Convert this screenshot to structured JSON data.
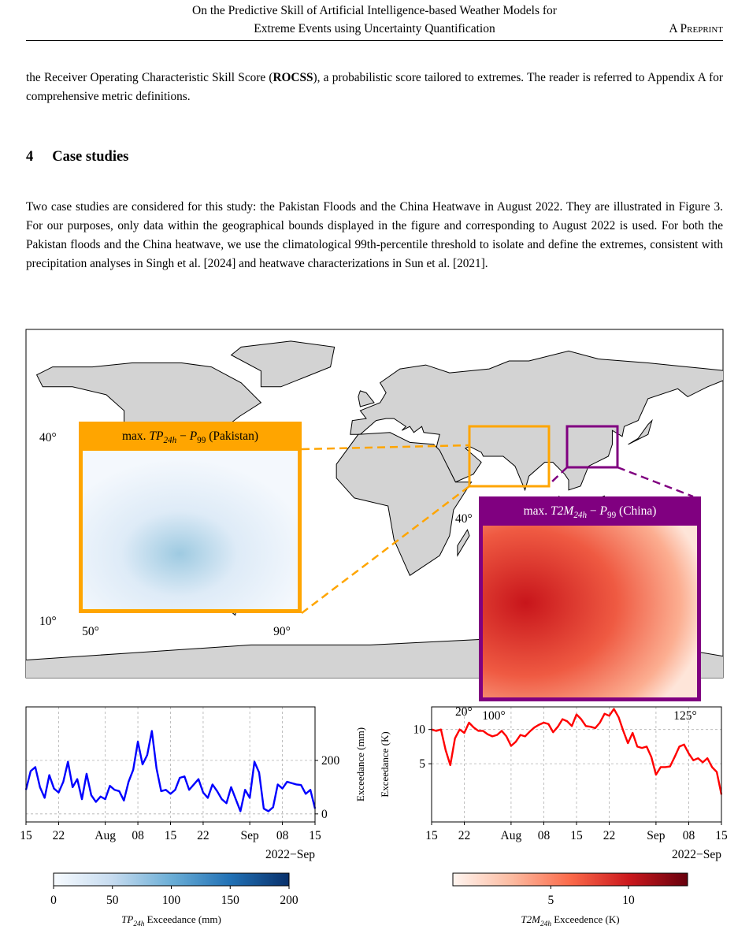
{
  "header": {
    "title_lines": [
      "On the Predictive Skill of Artificial Intelligence-based Weather Models for",
      "Extreme Events using Uncertainty Quantification"
    ],
    "running_label": "A Preprint"
  },
  "body": {
    "paragraph_1": [
      "the Receiver Operating Characteristic Skill Score (",
      "ROCSS",
      "), a probabilistic score tailored to extremes. The reader is referred to Appendix A for comprehensive metric definitions."
    ],
    "section": {
      "number": "4",
      "title": "Case studies"
    },
    "paragraph_2": "Two case studies are considered for this study: the Pakistan Floods and the China Heatwave in August 2022. They are illustrated in Figure 3. For our purposes, only data within the geographical bounds displayed in the figure and corresponding to August 2022 is used. For both the Pakistan floods and the China heatwave, we use the climatological 99th-percentile threshold to isolate and define the extremes, consistent with precipitation analyses in Singh et al. [2024] and heatwave characterizations in Sun et al. [2021]."
  },
  "figure": {
    "insets": [
      {
        "label": [
          {
            "text": "max. "
          },
          {
            "text": "TP",
            "italic": true
          },
          {
            "text": "24h",
            "italic": true,
            "sub": true
          },
          {
            "text": " − "
          },
          {
            "text": "P",
            "italic": true
          },
          {
            "text": "99",
            "sub": true
          },
          {
            "text": " (Pakistan)"
          }
        ],
        "color": "#ffa500",
        "lat_labels": [
          "40°",
          "10°"
        ],
        "lon_labels": [
          "50°",
          "90°"
        ]
      },
      {
        "label": [
          {
            "text": "max. "
          },
          {
            "text": "T2M",
            "italic": true
          },
          {
            "text": "24h",
            "italic": true,
            "sub": true
          },
          {
            "text": " − "
          },
          {
            "text": "P",
            "italic": true
          },
          {
            "text": "99",
            "sub": true
          },
          {
            "text": " (China)"
          }
        ],
        "color": "#800080",
        "lat_labels": [
          "40°",
          "20°"
        ],
        "lon_labels": [
          "100°",
          "125°"
        ]
      }
    ],
    "line_charts": {
      "type": "line",
      "x": [
        "2022-07-15",
        "2022-07-16",
        "2022-07-17",
        "2022-07-18",
        "2022-07-19",
        "2022-07-20",
        "2022-07-21",
        "2022-07-22",
        "2022-07-23",
        "2022-07-24",
        "2022-07-25",
        "2022-07-26",
        "2022-07-27",
        "2022-07-28",
        "2022-07-29",
        "2022-07-30",
        "2022-07-31",
        "2022-08-01",
        "2022-08-02",
        "2022-08-03",
        "2022-08-04",
        "2022-08-05",
        "2022-08-06",
        "2022-08-07",
        "2022-08-08",
        "2022-08-09",
        "2022-08-10",
        "2022-08-11",
        "2022-08-12",
        "2022-08-13",
        "2022-08-14",
        "2022-08-15",
        "2022-08-16",
        "2022-08-17",
        "2022-08-18",
        "2022-08-19",
        "2022-08-20",
        "2022-08-21",
        "2022-08-22",
        "2022-08-23",
        "2022-08-24",
        "2022-08-25",
        "2022-08-26",
        "2022-08-27",
        "2022-08-28",
        "2022-08-29",
        "2022-08-30",
        "2022-08-31",
        "2022-09-01",
        "2022-09-02",
        "2022-09-03",
        "2022-09-04",
        "2022-09-05",
        "2022-09-06",
        "2022-09-07",
        "2022-09-08",
        "2022-09-09",
        "2022-09-10",
        "2022-09-11",
        "2022-09-12",
        "2022-09-13",
        "2022-09-14",
        "2022-09-15"
      ],
      "xlim": [
        "2022-07-15",
        "2022-09-15"
      ],
      "xticks": [
        {
          "value": "2022-07-15",
          "label": "15"
        },
        {
          "value": "2022-07-22",
          "label": "22"
        },
        {
          "value": "2022-08-01",
          "label": "Aug"
        },
        {
          "value": "2022-08-08",
          "label": "08"
        },
        {
          "value": "2022-08-15",
          "label": "15"
        },
        {
          "value": "2022-08-22",
          "label": "22"
        },
        {
          "value": "2022-09-01",
          "label": "Sep"
        },
        {
          "value": "2022-09-08",
          "label": "08"
        },
        {
          "value": "2022-09-15",
          "label": "15"
        }
      ],
      "x_offset_label": "2022−Sep",
      "grid": true,
      "charts": [
        {
          "ylabel": "Exceedance (mm)",
          "y_axis_side": "right",
          "color": "#0000ff",
          "ylim": [
            -30,
            400
          ],
          "yticks": [
            0,
            200
          ],
          "values": [
            90,
            160,
            175,
            100,
            60,
            145,
            95,
            80,
            120,
            195,
            100,
            130,
            55,
            150,
            70,
            45,
            65,
            55,
            105,
            90,
            85,
            50,
            120,
            165,
            270,
            185,
            220,
            310,
            170,
            85,
            90,
            75,
            90,
            135,
            140,
            90,
            110,
            130,
            80,
            60,
            110,
            85,
            55,
            40,
            100,
            55,
            10,
            90,
            60,
            195,
            155,
            20,
            10,
            25,
            110,
            95,
            120,
            115,
            110,
            108,
            75,
            90,
            20
          ]
        },
        {
          "ylabel": "Exceedance (K)",
          "y_axis_side": "left",
          "color": "#ff0000",
          "ylim": [
            -3.5,
            13.3
          ],
          "yticks": [
            5,
            10
          ],
          "values": [
            10,
            9.8,
            10,
            7,
            4.8,
            8.7,
            10,
            9.5,
            11,
            10.3,
            9.8,
            9.8,
            9.3,
            9,
            9.2,
            9.8,
            9,
            7.6,
            8.2,
            9.2,
            9,
            9.7,
            10.3,
            10.7,
            11,
            10.8,
            9.6,
            10.4,
            11.5,
            11.2,
            10.5,
            12.2,
            11.5,
            10.5,
            10.4,
            10.2,
            11,
            12.3,
            12,
            13,
            11.8,
            9.8,
            8,
            9.5,
            7.5,
            7.3,
            7.5,
            6,
            3.4,
            4.5,
            4.5,
            4.6,
            6,
            7.5,
            7.8,
            6.5,
            5.5,
            5.8,
            5.2,
            5.8,
            4.5,
            3.8,
            0.5
          ]
        }
      ]
    },
    "colorbars": [
      {
        "clim": [
          0,
          200
        ],
        "ticks": [
          0,
          50,
          100,
          150,
          200
        ],
        "colors": [
          "#f7fbff",
          "#c6dbef",
          "#6baed6",
          "#2171b5",
          "#08306b"
        ],
        "label": [
          {
            "text": "TP",
            "italic": true
          },
          {
            "text": "24h",
            "italic": true,
            "sub": true
          },
          {
            "text": " Exceedance (mm)"
          }
        ]
      },
      {
        "clim": [
          -1.3,
          13.8
        ],
        "ticks": [
          5,
          10
        ],
        "colors": [
          "#fff5f0",
          "#fcbba1",
          "#fb6a4a",
          "#cb181d",
          "#67000d"
        ],
        "label": [
          {
            "text": "T2M",
            "italic": true
          },
          {
            "text": "24h",
            "italic": true,
            "sub": true
          },
          {
            "text": " Exceedence (K)"
          }
        ]
      }
    ]
  }
}
